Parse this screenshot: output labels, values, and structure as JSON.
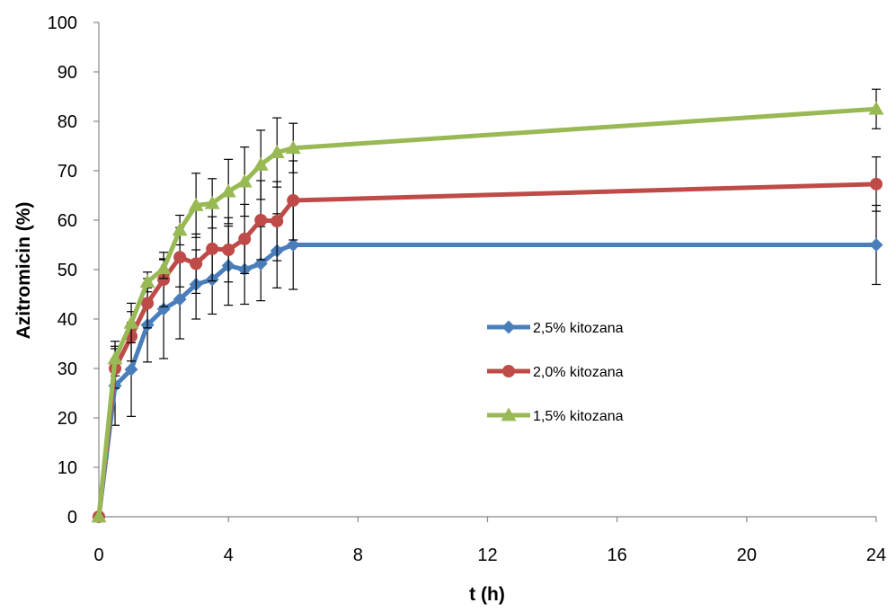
{
  "chart_data": {
    "type": "line",
    "title": "",
    "xlabel": "t (h)",
    "ylabel": "Azitromicin (%)",
    "xlim": [
      0,
      24
    ],
    "ylim": [
      0,
      100
    ],
    "xticks": [
      0,
      4,
      8,
      12,
      16,
      20,
      24
    ],
    "yticks": [
      0,
      10,
      20,
      30,
      40,
      50,
      60,
      70,
      80,
      90,
      100
    ],
    "grid": false,
    "legend": "center-right",
    "x": [
      0,
      0.5,
      1,
      1.5,
      2,
      2.5,
      3,
      3.5,
      4,
      4.5,
      5,
      5.5,
      6,
      24
    ],
    "series": [
      {
        "name": "2,5% kitozana",
        "color": "#4a7ebb",
        "marker": "diamond",
        "values": [
          0,
          26.5,
          29.8,
          38.8,
          42,
          44,
          47,
          48,
          50.8,
          50,
          51.2,
          53.8,
          55,
          55
        ],
        "errors": [
          0,
          8,
          9.5,
          7.5,
          10,
          8,
          7,
          7,
          8,
          7,
          7.5,
          7.5,
          9,
          8
        ]
      },
      {
        "name": "2,0% kitozana",
        "color": "#be4b48",
        "marker": "circle",
        "values": [
          0,
          30,
          36.5,
          43.2,
          48,
          52.5,
          51.2,
          54.2,
          54,
          56.2,
          60,
          59.8,
          64,
          67.3
        ],
        "errors": [
          0,
          4,
          5,
          5,
          5.5,
          6,
          6,
          6.5,
          6.5,
          7,
          8,
          8,
          8,
          5.5
        ]
      },
      {
        "name": "1,5% kitozana",
        "color": "#98b954",
        "marker": "triangle",
        "values": [
          0,
          32,
          39.2,
          47.5,
          50.2,
          58,
          63,
          63.4,
          65.8,
          67.8,
          71.2,
          73.7,
          74.6,
          82.5
        ],
        "errors": [
          0,
          3.5,
          4,
          2,
          2,
          3,
          6.5,
          5,
          6.5,
          7,
          7,
          7,
          5,
          4
        ]
      }
    ]
  }
}
